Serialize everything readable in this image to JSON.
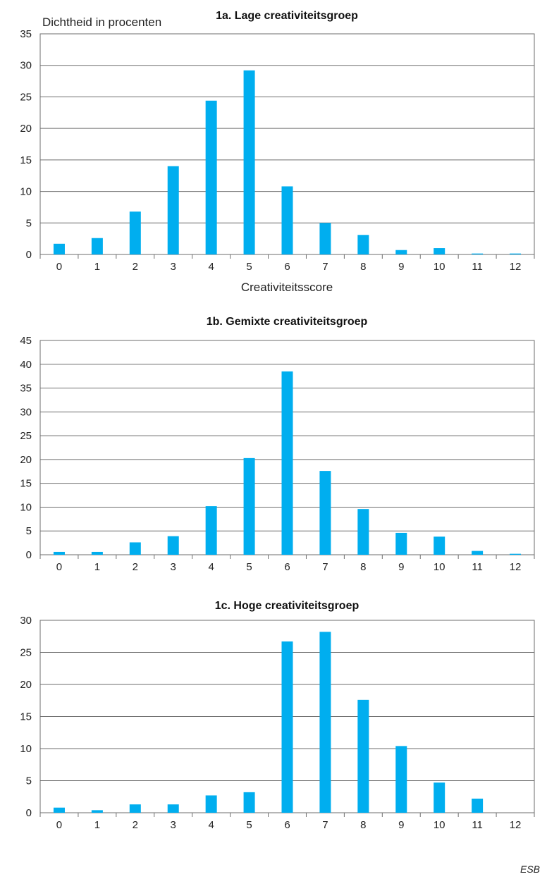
{
  "colors": {
    "bar": "#00aeef",
    "grid": "#6e6e6e"
  },
  "source": "ESB",
  "chart_data": [
    {
      "type": "bar",
      "title": "1a. Lage creativiteitsgroep",
      "ylabel": "Dichtheid in procenten",
      "xlabel": "Creativiteitsscore",
      "categories": [
        "0",
        "1",
        "2",
        "3",
        "4",
        "5",
        "6",
        "7",
        "8",
        "9",
        "10",
        "11",
        "12"
      ],
      "values": [
        1.7,
        2.6,
        6.8,
        14.0,
        24.4,
        29.2,
        10.8,
        5.0,
        3.1,
        0.7,
        1.0,
        0.15,
        0.15
      ],
      "ylim": [
        0,
        35
      ],
      "yticks": [
        0,
        5,
        10,
        15,
        20,
        25,
        30,
        35
      ],
      "grid": true
    },
    {
      "type": "bar",
      "title": "1b. Gemixte creativiteitsgroep",
      "ylabel": "",
      "xlabel": "",
      "categories": [
        "0",
        "1",
        "2",
        "3",
        "4",
        "5",
        "6",
        "7",
        "8",
        "9",
        "10",
        "11",
        "12"
      ],
      "values": [
        0.6,
        0.6,
        2.6,
        3.9,
        10.2,
        20.3,
        38.5,
        17.6,
        9.6,
        4.6,
        3.8,
        0.8,
        0.2
      ],
      "ylim": [
        0,
        45
      ],
      "yticks": [
        0,
        5,
        10,
        15,
        20,
        25,
        30,
        35,
        40,
        45
      ],
      "grid": true
    },
    {
      "type": "bar",
      "title": "1c. Hoge creativiteitsgroep",
      "ylabel": "",
      "xlabel": "",
      "categories": [
        "0",
        "1",
        "2",
        "3",
        "4",
        "5",
        "6",
        "7",
        "8",
        "9",
        "10",
        "11",
        "12"
      ],
      "values": [
        0.8,
        0.4,
        1.3,
        1.3,
        2.7,
        3.2,
        26.7,
        28.2,
        17.6,
        10.4,
        4.7,
        2.2,
        0
      ],
      "ylim": [
        0,
        30
      ],
      "yticks": [
        0,
        5,
        10,
        15,
        20,
        25,
        30
      ],
      "grid": true
    }
  ]
}
